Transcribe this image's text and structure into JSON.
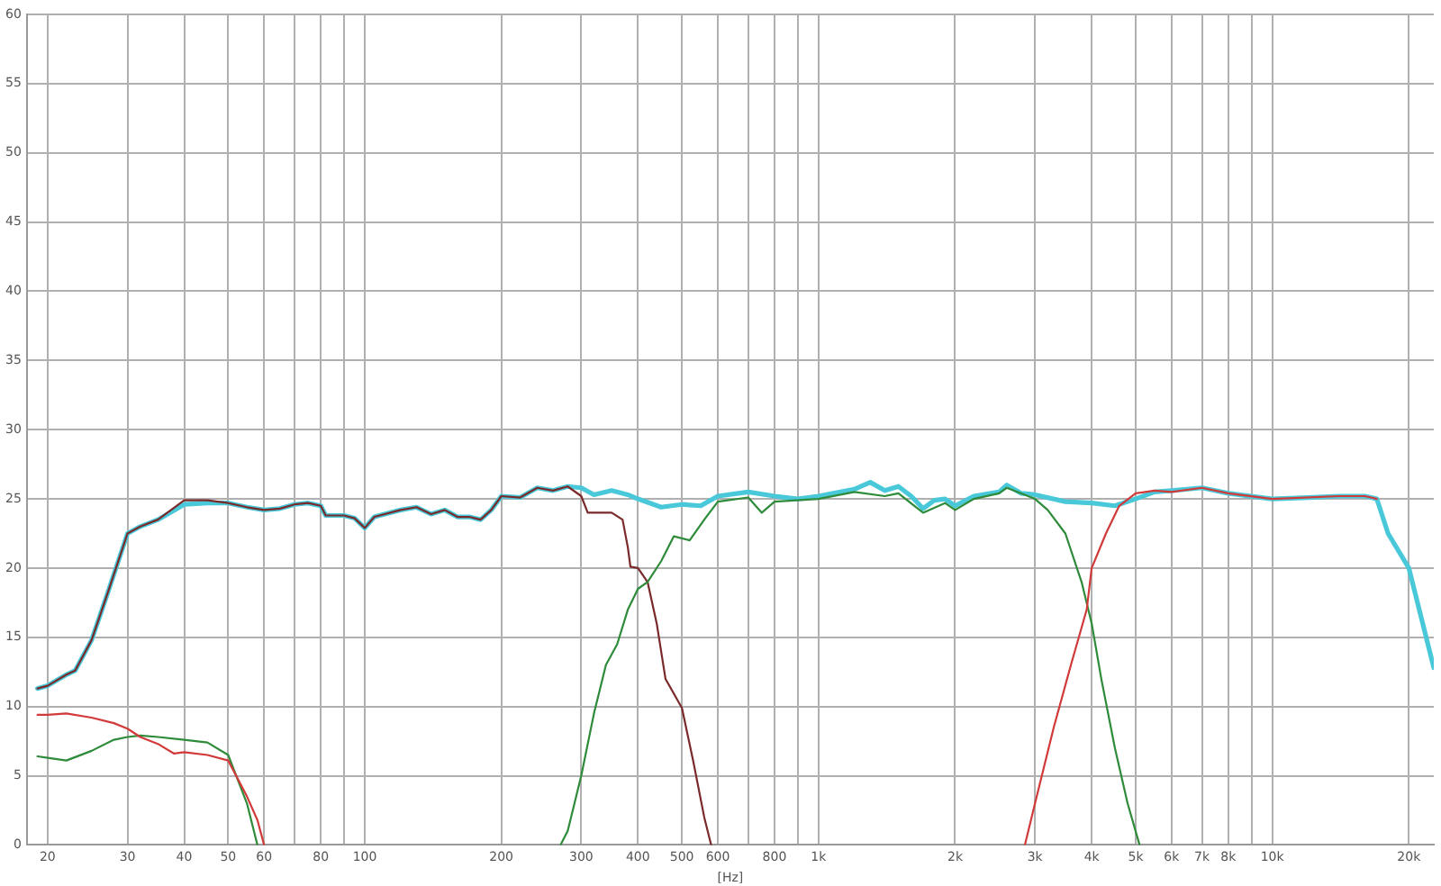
{
  "chart_data": {
    "type": "line",
    "xlabel": "[Hz]",
    "log": "x",
    "grid": true,
    "legend": false,
    "marker": "none",
    "line_style": "solid",
    "xlim": [
      18,
      22700
    ],
    "ylim": [
      0,
      60
    ],
    "xticks": [
      20,
      30,
      40,
      50,
      60,
      {
        "value": 70,
        "label": null
      },
      80,
      {
        "value": 90,
        "label": null
      },
      100,
      200,
      300,
      400,
      500,
      600,
      {
        "value": 700,
        "label": null
      },
      800,
      {
        "value": 900,
        "label": null
      },
      {
        "value": 1000,
        "label": "1k"
      },
      {
        "value": 2000,
        "label": "2k"
      },
      {
        "value": 3000,
        "label": "3k"
      },
      {
        "value": 4000,
        "label": "4k"
      },
      {
        "value": 5000,
        "label": "5k"
      },
      {
        "value": 6000,
        "label": "6k"
      },
      {
        "value": 7000,
        "label": "7k"
      },
      {
        "value": 8000,
        "label": "8k"
      },
      {
        "value": 9000,
        "label": null
      },
      {
        "value": 10000,
        "label": "10k"
      },
      {
        "value": 20000,
        "label": "20k"
      }
    ],
    "yticks": [
      0,
      5,
      10,
      15,
      20,
      25,
      30,
      35,
      40,
      45,
      50,
      55,
      60
    ],
    "series": [
      {
        "color": "#48c8d8",
        "x": [
          19,
          20,
          22,
          23,
          25,
          27,
          30,
          32,
          35,
          40,
          45,
          50,
          55,
          60,
          65,
          70,
          75,
          80,
          82,
          90,
          95,
          100,
          105,
          120,
          130,
          140,
          150,
          160,
          170,
          180,
          190,
          200,
          220,
          240,
          260,
          280,
          300,
          320,
          350,
          380,
          400,
          450,
          500,
          550,
          600,
          700,
          800,
          900,
          1000,
          1200,
          1300,
          1400,
          1500,
          1600,
          1700,
          1800,
          1900,
          2000,
          2200,
          2500,
          2600,
          2800,
          3000,
          3500,
          4000,
          4500,
          5000,
          5500,
          6000,
          7000,
          8000,
          10000,
          12000,
          14000,
          16000,
          17000,
          18000,
          20000,
          22700
        ],
        "values": [
          11.3,
          11.5,
          12.3,
          12.6,
          14.8,
          18,
          22.5,
          23,
          23.5,
          24.6,
          24.7,
          24.7,
          24.4,
          24.2,
          24.3,
          24.6,
          24.7,
          24.5,
          23.8,
          23.8,
          23.6,
          22.9,
          23.7,
          24.2,
          24.4,
          23.9,
          24.2,
          23.7,
          23.7,
          23.5,
          24.2,
          25.2,
          25.1,
          25.8,
          25.6,
          25.9,
          25.8,
          25.3,
          25.6,
          25.3,
          25,
          24.4,
          24.6,
          24.5,
          25.2,
          25.5,
          25.2,
          25,
          25.2,
          25.7,
          26.2,
          25.6,
          25.9,
          25.2,
          24.3,
          24.9,
          25,
          24.5,
          25.2,
          25.5,
          26,
          25.4,
          25.3,
          24.8,
          24.7,
          24.5,
          25,
          25.5,
          25.6,
          25.8,
          25.4,
          25,
          25.1,
          25.2,
          25.2,
          25,
          22.5,
          20,
          12.8
        ]
      },
      {
        "color": "#7a2a2a",
        "x": [
          19,
          20,
          22,
          23,
          25,
          27,
          30,
          32,
          35,
          40,
          45,
          50,
          55,
          60,
          65,
          70,
          75,
          80,
          82,
          90,
          95,
          100,
          105,
          120,
          130,
          140,
          150,
          160,
          170,
          180,
          190,
          200,
          220,
          240,
          260,
          280,
          300,
          310,
          350,
          370,
          380,
          385,
          400,
          420,
          440,
          460,
          500,
          530,
          560,
          580
        ],
        "values": [
          11.3,
          11.5,
          12.3,
          12.6,
          14.8,
          18,
          22.5,
          23,
          23.5,
          24.9,
          24.9,
          24.7,
          24.4,
          24.2,
          24.3,
          24.6,
          24.7,
          24.5,
          23.8,
          23.8,
          23.6,
          22.9,
          23.7,
          24.2,
          24.4,
          23.9,
          24.2,
          23.7,
          23.7,
          23.5,
          24.2,
          25.2,
          25.1,
          25.8,
          25.6,
          25.9,
          25.2,
          24,
          24,
          23.5,
          21.5,
          20.1,
          20,
          19,
          16,
          12,
          9.9,
          6,
          2,
          0
        ]
      },
      {
        "color": "#2e8b3a",
        "x": [
          19,
          20,
          22,
          25,
          28,
          30,
          32,
          35,
          40,
          45,
          50,
          55,
          58,
          100,
          270,
          280,
          300,
          320,
          340,
          360,
          380,
          400,
          420,
          450,
          480,
          520,
          560,
          600,
          700,
          750,
          800,
          1000,
          1200,
          1400,
          1500,
          1700,
          1900,
          2000,
          2200,
          2500,
          2600,
          3000,
          3200,
          3500,
          3800,
          4000,
          4200,
          4500,
          4800,
          5100
        ],
        "values": [
          6.4,
          6.3,
          6.1,
          6.8,
          7.6,
          7.8,
          7.9,
          7.8,
          7.6,
          7.4,
          6.5,
          3,
          0,
          null,
          0,
          1,
          5,
          9.5,
          13,
          14.5,
          17,
          18.5,
          19,
          20.5,
          22.3,
          22,
          23.5,
          24.8,
          25.1,
          24,
          24.8,
          25,
          25.5,
          25.2,
          25.4,
          24,
          24.7,
          24.2,
          25,
          25.4,
          25.8,
          25,
          24.2,
          22.5,
          19,
          16,
          12,
          7,
          3,
          0
        ]
      },
      {
        "color": "#d23a3a",
        "x": [
          19,
          20,
          22,
          25,
          28,
          30,
          32,
          35,
          38,
          40,
          45,
          50,
          55,
          58,
          60,
          1000,
          2850,
          3000,
          3300,
          3600,
          3900,
          4000,
          4300,
          4600,
          5000,
          5500,
          6000,
          7000,
          8000,
          10000,
          14000,
          16000,
          17000
        ],
        "values": [
          9.4,
          9.4,
          9.5,
          9.2,
          8.8,
          8.4,
          7.8,
          7.3,
          6.6,
          6.7,
          6.5,
          6.1,
          3.5,
          1.8,
          0,
          null,
          0,
          3,
          8.5,
          13,
          17,
          20,
          22.5,
          24.5,
          25.4,
          25.6,
          25.5,
          25.8,
          25.4,
          25,
          25.2,
          25.2,
          25
        ]
      }
    ]
  }
}
